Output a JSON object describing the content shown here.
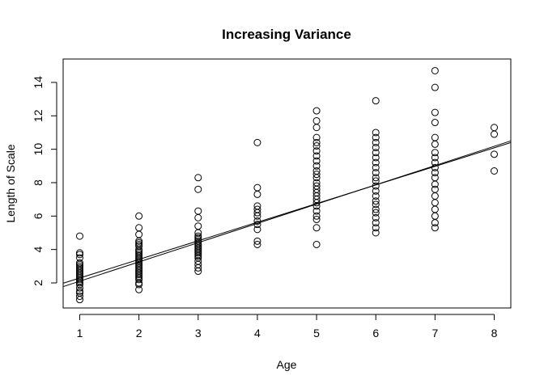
{
  "chart_data": {
    "type": "scatter",
    "title": "Increasing Variance",
    "xlabel": "Age",
    "ylabel": "Length of Scale",
    "xlim": [
      0.72,
      8.28
    ],
    "ylim": [
      0.5,
      15.4
    ],
    "x_ticks": [
      1,
      2,
      3,
      4,
      5,
      6,
      7,
      8
    ],
    "y_ticks": [
      2,
      4,
      6,
      8,
      10,
      12,
      14
    ],
    "grid": false,
    "legend": "none",
    "point_style": "open-circle",
    "series": [
      {
        "points": [
          [
            1,
            1.0
          ],
          [
            1,
            1.2
          ],
          [
            1,
            1.4
          ],
          [
            1,
            1.5
          ],
          [
            1,
            1.7
          ],
          [
            1,
            1.9
          ],
          [
            1,
            2.0
          ],
          [
            1,
            2.1
          ],
          [
            1,
            2.2
          ],
          [
            1,
            2.3
          ],
          [
            1,
            2.4
          ],
          [
            1,
            2.5
          ],
          [
            1,
            2.6
          ],
          [
            1,
            2.7
          ],
          [
            1,
            2.8
          ],
          [
            1,
            2.9
          ],
          [
            1,
            3.0
          ],
          [
            1,
            3.1
          ],
          [
            1,
            3.2
          ],
          [
            1,
            3.5
          ],
          [
            1,
            3.7
          ],
          [
            1,
            3.8
          ],
          [
            1,
            4.8
          ],
          [
            2,
            1.6
          ],
          [
            2,
            1.9
          ],
          [
            2,
            2.0
          ],
          [
            2,
            2.2
          ],
          [
            2,
            2.3
          ],
          [
            2,
            2.4
          ],
          [
            2,
            2.5
          ],
          [
            2,
            2.6
          ],
          [
            2,
            2.7
          ],
          [
            2,
            2.8
          ],
          [
            2,
            2.9
          ],
          [
            2,
            3.0
          ],
          [
            2,
            3.1
          ],
          [
            2,
            3.2
          ],
          [
            2,
            3.3
          ],
          [
            2,
            3.4
          ],
          [
            2,
            3.5
          ],
          [
            2,
            3.6
          ],
          [
            2,
            3.7
          ],
          [
            2,
            3.8
          ],
          [
            2,
            3.9
          ],
          [
            2,
            4.0
          ],
          [
            2,
            4.2
          ],
          [
            2,
            4.3
          ],
          [
            2,
            4.4
          ],
          [
            2,
            4.5
          ],
          [
            2,
            4.9
          ],
          [
            2,
            5.3
          ],
          [
            2,
            6.0
          ],
          [
            3,
            2.7
          ],
          [
            3,
            2.9
          ],
          [
            3,
            3.1
          ],
          [
            3,
            3.3
          ],
          [
            3,
            3.5
          ],
          [
            3,
            3.6
          ],
          [
            3,
            3.7
          ],
          [
            3,
            3.8
          ],
          [
            3,
            3.9
          ],
          [
            3,
            4.0
          ],
          [
            3,
            4.1
          ],
          [
            3,
            4.2
          ],
          [
            3,
            4.3
          ],
          [
            3,
            4.4
          ],
          [
            3,
            4.5
          ],
          [
            3,
            4.6
          ],
          [
            3,
            4.7
          ],
          [
            3,
            4.8
          ],
          [
            3,
            5.0
          ],
          [
            3,
            5.4
          ],
          [
            3,
            5.9
          ],
          [
            3,
            6.3
          ],
          [
            3,
            7.6
          ],
          [
            3,
            8.3
          ],
          [
            4,
            4.3
          ],
          [
            4,
            4.5
          ],
          [
            4,
            5.2
          ],
          [
            4,
            5.5
          ],
          [
            4,
            5.7
          ],
          [
            4,
            6.0
          ],
          [
            4,
            6.2
          ],
          [
            4,
            6.4
          ],
          [
            4,
            6.6
          ],
          [
            4,
            7.3
          ],
          [
            4,
            7.7
          ],
          [
            4,
            10.4
          ],
          [
            5,
            4.3
          ],
          [
            5,
            5.3
          ],
          [
            5,
            5.8
          ],
          [
            5,
            6.0
          ],
          [
            5,
            6.3
          ],
          [
            5,
            6.6
          ],
          [
            5,
            6.8
          ],
          [
            5,
            7.0
          ],
          [
            5,
            7.2
          ],
          [
            5,
            7.4
          ],
          [
            5,
            7.6
          ],
          [
            5,
            7.8
          ],
          [
            5,
            8.0
          ],
          [
            5,
            8.3
          ],
          [
            5,
            8.5
          ],
          [
            5,
            8.7
          ],
          [
            5,
            9.0
          ],
          [
            5,
            9.3
          ],
          [
            5,
            9.6
          ],
          [
            5,
            9.9
          ],
          [
            5,
            10.2
          ],
          [
            5,
            10.4
          ],
          [
            5,
            10.7
          ],
          [
            5,
            11.3
          ],
          [
            5,
            11.7
          ],
          [
            5,
            12.3
          ],
          [
            6,
            5.0
          ],
          [
            6,
            5.3
          ],
          [
            6,
            5.6
          ],
          [
            6,
            5.9
          ],
          [
            6,
            6.2
          ],
          [
            6,
            6.4
          ],
          [
            6,
            6.7
          ],
          [
            6,
            6.9
          ],
          [
            6,
            7.2
          ],
          [
            6,
            7.5
          ],
          [
            6,
            7.8
          ],
          [
            6,
            8.1
          ],
          [
            6,
            8.3
          ],
          [
            6,
            8.6
          ],
          [
            6,
            8.9
          ],
          [
            6,
            9.2
          ],
          [
            6,
            9.5
          ],
          [
            6,
            9.8
          ],
          [
            6,
            10.1
          ],
          [
            6,
            10.4
          ],
          [
            6,
            10.7
          ],
          [
            6,
            11.0
          ],
          [
            6,
            12.9
          ],
          [
            7,
            5.3
          ],
          [
            7,
            5.6
          ],
          [
            7,
            6.0
          ],
          [
            7,
            6.4
          ],
          [
            7,
            6.8
          ],
          [
            7,
            7.2
          ],
          [
            7,
            7.6
          ],
          [
            7,
            7.9
          ],
          [
            7,
            8.3
          ],
          [
            7,
            8.6
          ],
          [
            7,
            8.9
          ],
          [
            7,
            9.2
          ],
          [
            7,
            9.5
          ],
          [
            7,
            9.8
          ],
          [
            7,
            10.3
          ],
          [
            7,
            10.7
          ],
          [
            7,
            11.6
          ],
          [
            7,
            12.2
          ],
          [
            7,
            13.7
          ],
          [
            7,
            14.7
          ],
          [
            8,
            8.7
          ],
          [
            8,
            9.7
          ],
          [
            8,
            10.9
          ],
          [
            8,
            11.3
          ]
        ]
      }
    ],
    "fit_lines": [
      {
        "x": [
          0.72,
          8.28
        ],
        "y": [
          1.78,
          10.5
        ]
      },
      {
        "x": [
          0.72,
          8.28
        ],
        "y": [
          1.98,
          10.4
        ]
      }
    ]
  }
}
